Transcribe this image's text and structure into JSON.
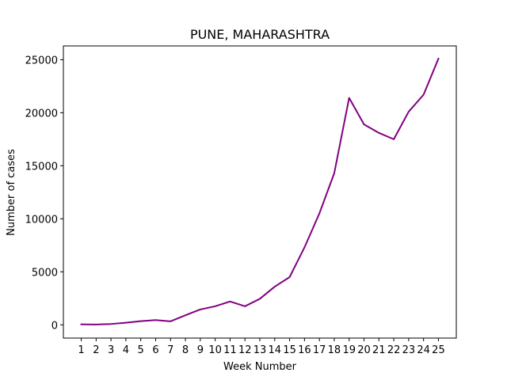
{
  "chart_data": {
    "type": "line",
    "title": "PUNE, MAHARASHTRA",
    "xlabel": "Week Number",
    "ylabel": "Number of cases",
    "x": [
      1,
      2,
      3,
      4,
      5,
      6,
      7,
      8,
      9,
      10,
      11,
      12,
      13,
      14,
      15,
      16,
      17,
      18,
      19,
      20,
      21,
      22,
      23,
      24,
      25
    ],
    "x_tick_labels": [
      "1",
      "2",
      "3",
      "4",
      "5",
      "6",
      "7",
      "8",
      "9",
      "10",
      "11",
      "12",
      "13",
      "14",
      "15",
      "16",
      "17",
      "18",
      "19",
      "20",
      "21",
      "22",
      "23",
      "24",
      "25"
    ],
    "y_ticks": [
      0,
      5000,
      10000,
      15000,
      20000,
      25000
    ],
    "y_tick_labels": [
      "0",
      "5000",
      "10000",
      "15000",
      "20000",
      "25000"
    ],
    "xlim": [
      -0.2,
      26.2
    ],
    "ylim": [
      -1250,
      26300
    ],
    "grid": false,
    "series": [
      {
        "color": "#800080",
        "values": [
          50,
          30,
          80,
          200,
          350,
          450,
          330,
          900,
          1450,
          1750,
          2200,
          1750,
          2450,
          3600,
          4500,
          7300,
          10500,
          14300,
          21400,
          18900,
          18100,
          17500,
          20100,
          21700,
          25100
        ]
      }
    ]
  }
}
